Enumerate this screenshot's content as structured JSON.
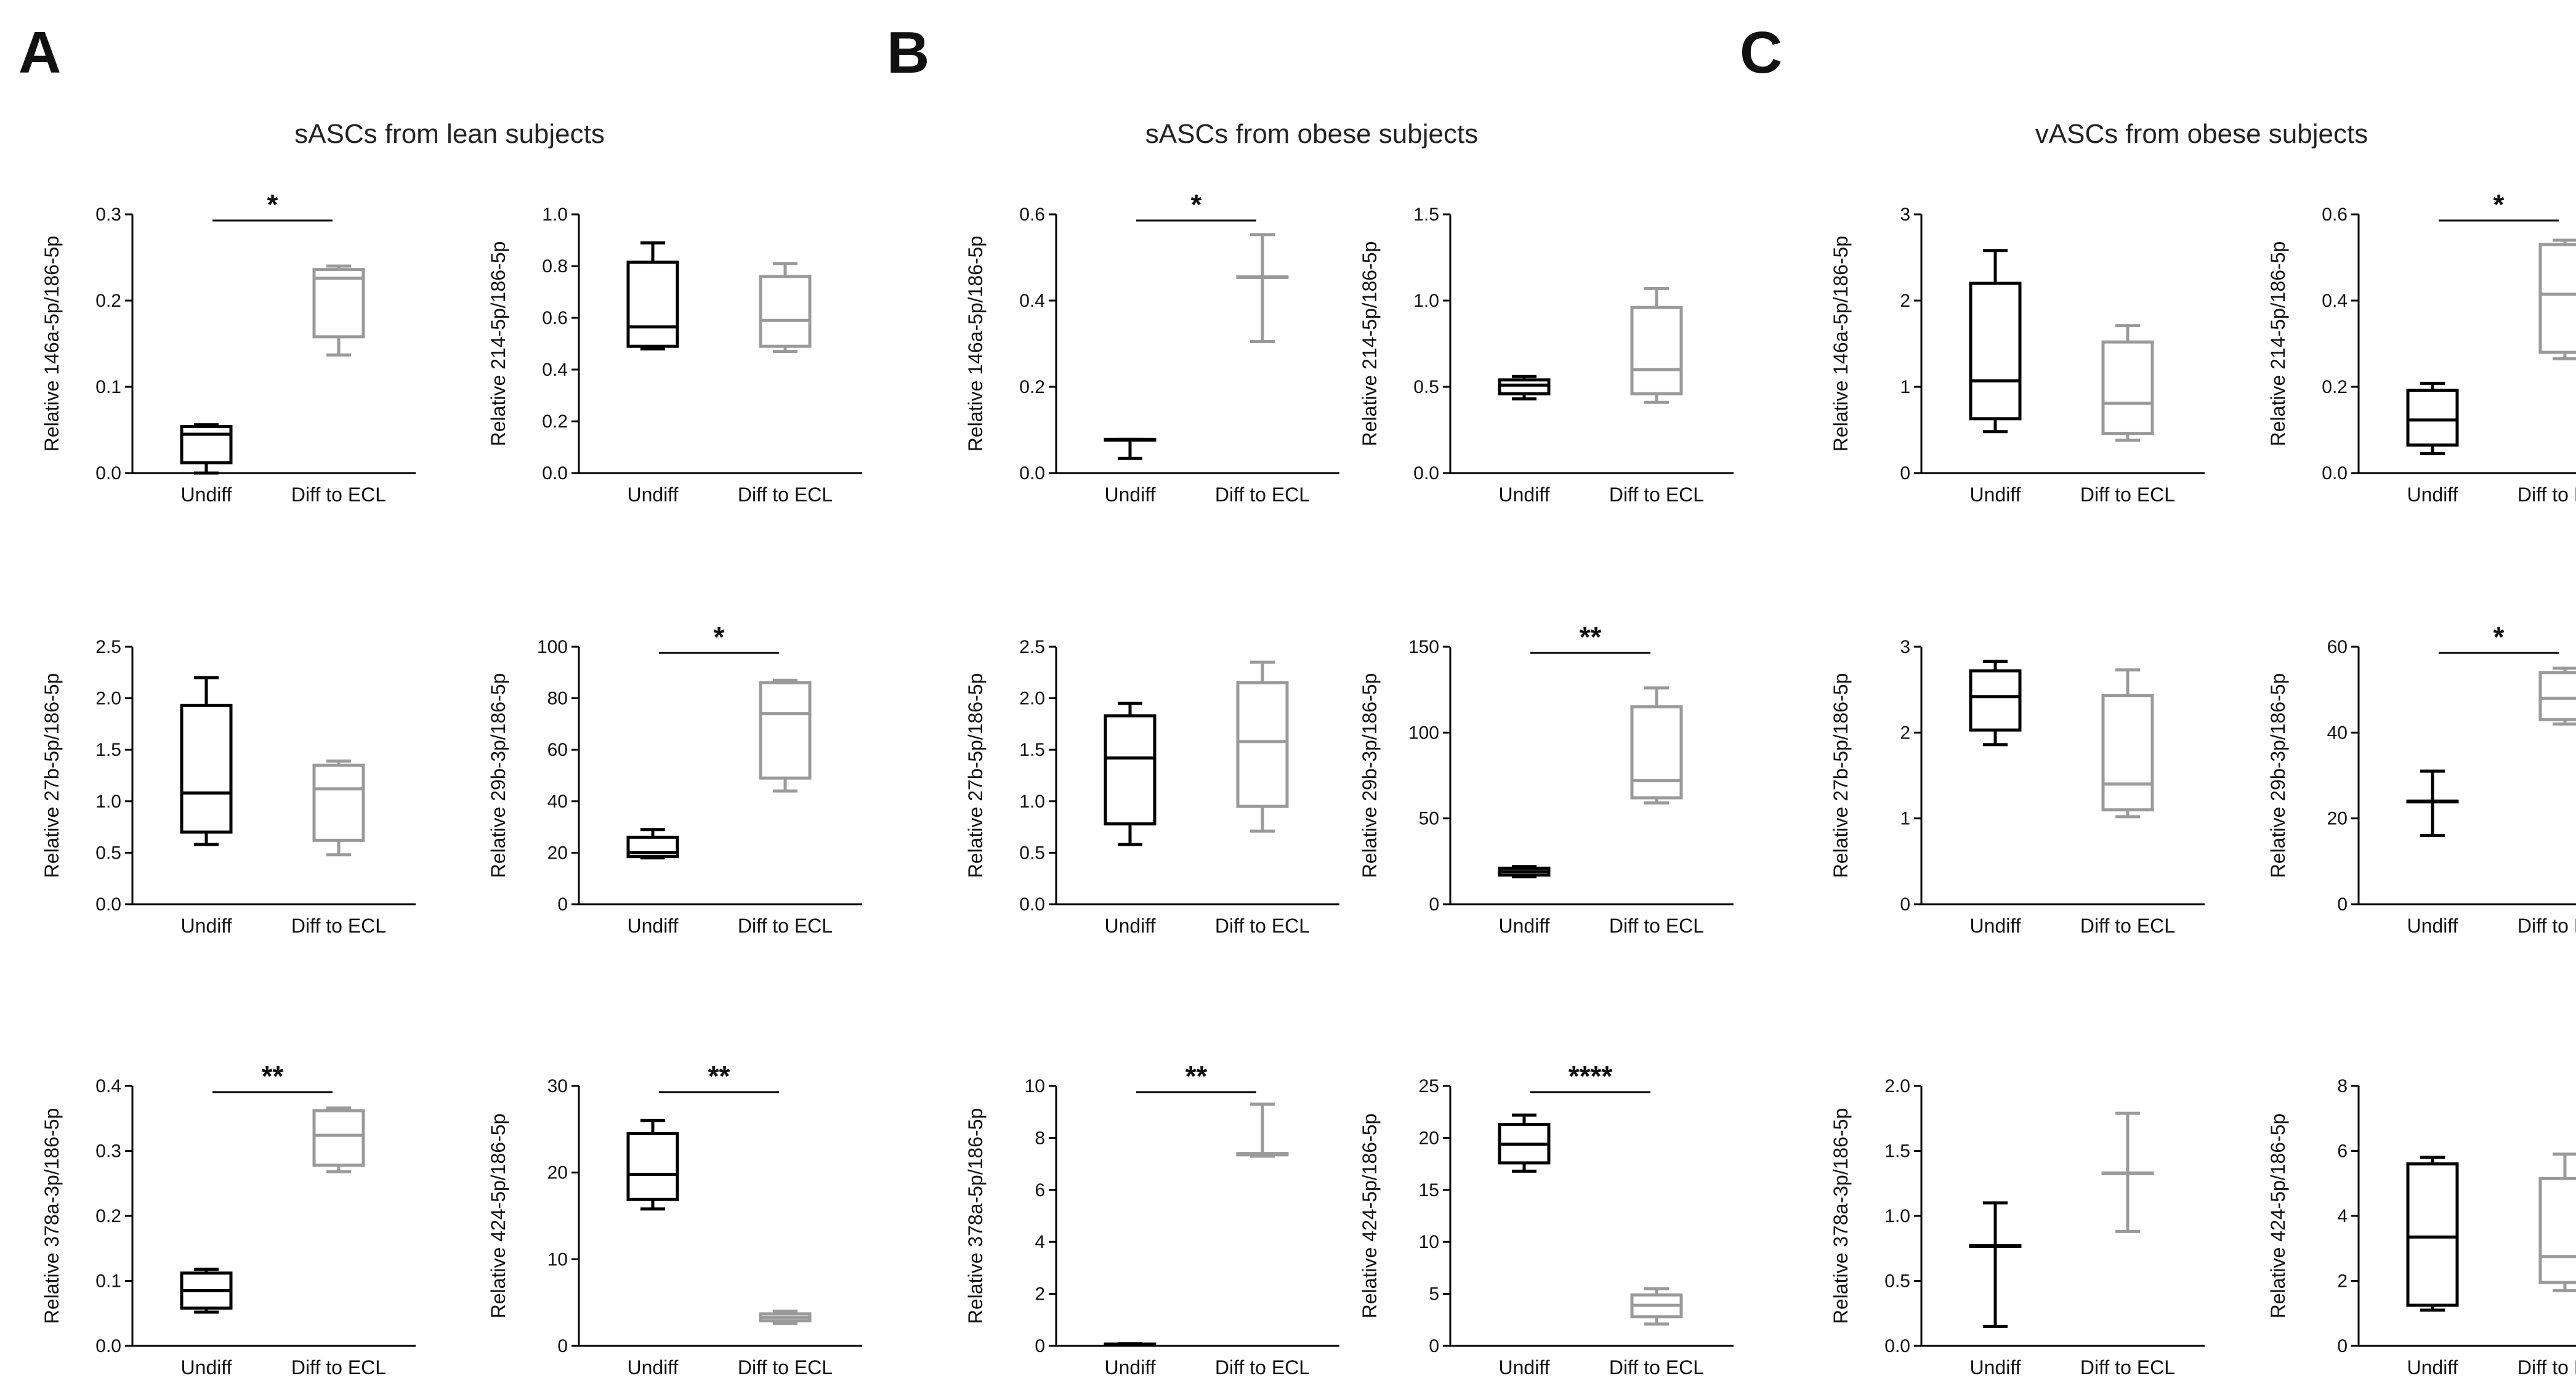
{
  "panels": [
    {
      "letter": "A",
      "title": "sASCs from lean subjects"
    },
    {
      "letter": "B",
      "title": "sASCs from obese subjects"
    },
    {
      "letter": "C",
      "title": "vASCs from obese subjects"
    }
  ],
  "colors": {
    "undiff": "#000000",
    "diff": "#9a9a9a"
  },
  "chart_data": [
    {
      "panel": "A",
      "type": "box",
      "ylabel": "Relative 146a-5p/186-5p",
      "ylim": [
        0,
        0.3
      ],
      "yticks": [
        "0.0",
        "0.1",
        "0.2",
        "0.3"
      ],
      "categories": [
        "Undiff",
        "Diff to ECL"
      ],
      "significance": "*",
      "boxes": [
        {
          "min": 0.0,
          "q1": 0.012,
          "median": 0.045,
          "q3": 0.054,
          "max": 0.056
        },
        {
          "min": 0.137,
          "q1": 0.158,
          "median": 0.226,
          "q3": 0.236,
          "max": 0.24
        }
      ]
    },
    {
      "panel": "A",
      "type": "box",
      "ylabel": "Relative 214-5p/186-5p",
      "ylim": [
        0,
        1.0
      ],
      "yticks": [
        "0.0",
        "0.2",
        "0.4",
        "0.6",
        "0.8",
        "1.0"
      ],
      "categories": [
        "Undiff",
        "Diff to ECL"
      ],
      "significance": "",
      "boxes": [
        {
          "min": 0.48,
          "q1": 0.49,
          "median": 0.565,
          "q3": 0.815,
          "max": 0.89
        },
        {
          "min": 0.47,
          "q1": 0.49,
          "median": 0.59,
          "q3": 0.76,
          "max": 0.81
        }
      ]
    },
    {
      "panel": "A",
      "type": "box",
      "ylabel": "Relative 27b-5p/186-5p",
      "ylim": [
        0,
        2.5
      ],
      "yticks": [
        "0.0",
        "0.5",
        "1.0",
        "1.5",
        "2.0",
        "2.5"
      ],
      "categories": [
        "Undiff",
        "Diff to ECL"
      ],
      "significance": "",
      "boxes": [
        {
          "min": 0.58,
          "q1": 0.7,
          "median": 1.08,
          "q3": 1.93,
          "max": 2.2
        },
        {
          "min": 0.48,
          "q1": 0.62,
          "median": 1.12,
          "q3": 1.35,
          "max": 1.39
        }
      ]
    },
    {
      "panel": "A",
      "type": "box",
      "ylabel": "Relative 29b-3p/186-5p",
      "ylim": [
        0,
        100
      ],
      "yticks": [
        "0",
        "20",
        "40",
        "60",
        "80",
        "100"
      ],
      "categories": [
        "Undiff",
        "Diff to ECL"
      ],
      "significance": "*",
      "boxes": [
        {
          "min": 18,
          "q1": 18.5,
          "median": 20,
          "q3": 26,
          "max": 29
        },
        {
          "min": 44,
          "q1": 49,
          "median": 74,
          "q3": 86,
          "max": 87
        }
      ]
    },
    {
      "panel": "A",
      "type": "box",
      "ylabel": "Relative 378a-3p/186-5p",
      "ylim": [
        0,
        0.4
      ],
      "yticks": [
        "0.0",
        "0.1",
        "0.2",
        "0.3",
        "0.4"
      ],
      "categories": [
        "Undiff",
        "Diff to ECL"
      ],
      "significance": "**",
      "boxes": [
        {
          "min": 0.052,
          "q1": 0.058,
          "median": 0.085,
          "q3": 0.112,
          "max": 0.118
        },
        {
          "min": 0.268,
          "q1": 0.278,
          "median": 0.324,
          "q3": 0.362,
          "max": 0.366
        }
      ]
    },
    {
      "panel": "A",
      "type": "box",
      "ylabel": "Relative 424-5p/186-5p",
      "ylim": [
        0,
        30
      ],
      "yticks": [
        "0",
        "10",
        "20",
        "30"
      ],
      "categories": [
        "Undiff",
        "Diff to ECL"
      ],
      "significance": "**",
      "boxes": [
        {
          "min": 15.8,
          "q1": 16.9,
          "median": 19.8,
          "q3": 24.5,
          "max": 26
        },
        {
          "min": 2.6,
          "q1": 2.9,
          "median": 3.3,
          "q3": 3.7,
          "max": 4.0
        }
      ]
    },
    {
      "panel": "B",
      "type": "box",
      "ylabel": "Relative 146a-5p/186-5p",
      "ylim": [
        0,
        0.6
      ],
      "yticks": [
        "0.0",
        "0.2",
        "0.4",
        "0.6"
      ],
      "categories": [
        "Undiff",
        "Diff to ECL"
      ],
      "significance": "*",
      "boxes": [
        {
          "min": 0.034,
          "q1": 0.078,
          "median": 0.078,
          "q3": 0.078,
          "max": 0.078
        },
        {
          "min": 0.305,
          "q1": 0.455,
          "median": 0.455,
          "q3": 0.455,
          "max": 0.553
        }
      ]
    },
    {
      "panel": "B",
      "type": "box",
      "ylabel": "Relative 214-5p/186-5p",
      "ylim": [
        0,
        1.5
      ],
      "yticks": [
        "0.0",
        "0.5",
        "1.0",
        "1.5"
      ],
      "categories": [
        "Undiff",
        "Diff to ECL"
      ],
      "significance": "",
      "boxes": [
        {
          "min": 0.43,
          "q1": 0.46,
          "median": 0.51,
          "q3": 0.54,
          "max": 0.56
        },
        {
          "min": 0.41,
          "q1": 0.46,
          "median": 0.6,
          "q3": 0.96,
          "max": 1.07
        }
      ]
    },
    {
      "panel": "B",
      "type": "box",
      "ylabel": "Relative 27b-5p/186-5p",
      "ylim": [
        0,
        2.5
      ],
      "yticks": [
        "0.0",
        "0.5",
        "1.0",
        "1.5",
        "2.0",
        "2.5"
      ],
      "categories": [
        "Undiff",
        "Diff to ECL"
      ],
      "significance": "",
      "boxes": [
        {
          "min": 0.58,
          "q1": 0.78,
          "median": 1.42,
          "q3": 1.83,
          "max": 1.95
        },
        {
          "min": 0.71,
          "q1": 0.95,
          "median": 1.58,
          "q3": 2.15,
          "max": 2.35
        }
      ]
    },
    {
      "panel": "B",
      "type": "box",
      "ylabel": "Relative 29b-3p/186-5p",
      "ylim": [
        0,
        150
      ],
      "yticks": [
        "0",
        "50",
        "100",
        "150"
      ],
      "categories": [
        "Undiff",
        "Diff to ECL"
      ],
      "significance": "**",
      "boxes": [
        {
          "min": 16,
          "q1": 17,
          "median": 19,
          "q3": 21,
          "max": 22
        },
        {
          "min": 59,
          "q1": 62,
          "median": 72,
          "q3": 115,
          "max": 126
        }
      ]
    },
    {
      "panel": "B",
      "type": "box",
      "ylabel": "Relative 378a-5p/186-5p",
      "ylim": [
        0,
        10
      ],
      "yticks": [
        "0",
        "2",
        "4",
        "6",
        "8",
        "10"
      ],
      "categories": [
        "Undiff",
        "Diff to ECL"
      ],
      "significance": "**",
      "boxes": [
        {
          "min": 0.03,
          "q1": 0.05,
          "median": 0.06,
          "q3": 0.07,
          "max": 0.08
        },
        {
          "min": 7.3,
          "q1": 7.35,
          "median": 7.4,
          "q3": 7.4,
          "max": 9.3
        }
      ]
    },
    {
      "panel": "B",
      "type": "box",
      "ylabel": "Relative 424-5p/186-5p",
      "ylim": [
        0,
        25
      ],
      "yticks": [
        "0",
        "5",
        "10",
        "15",
        "20",
        "25"
      ],
      "categories": [
        "Undiff",
        "Diff to ECL"
      ],
      "significance": "****",
      "boxes": [
        {
          "min": 16.8,
          "q1": 17.6,
          "median": 19.4,
          "q3": 21.3,
          "max": 22.2
        },
        {
          "min": 2.1,
          "q1": 2.8,
          "median": 3.9,
          "q3": 4.9,
          "max": 5.5
        }
      ]
    },
    {
      "panel": "C",
      "type": "box",
      "ylabel": "Relative 146a-5p/186-5p",
      "ylim": [
        0,
        3
      ],
      "yticks": [
        "0",
        "1",
        "2",
        "3"
      ],
      "categories": [
        "Undiff",
        "Diff to ECL"
      ],
      "significance": "",
      "boxes": [
        {
          "min": 0.48,
          "q1": 0.63,
          "median": 1.07,
          "q3": 2.2,
          "max": 2.58
        },
        {
          "min": 0.38,
          "q1": 0.46,
          "median": 0.81,
          "q3": 1.52,
          "max": 1.71
        }
      ]
    },
    {
      "panel": "C",
      "type": "box",
      "ylabel": "Relative 214-5p/186-5p",
      "ylim": [
        0,
        0.6
      ],
      "yticks": [
        "0.0",
        "0.2",
        "0.4",
        "0.6"
      ],
      "categories": [
        "Undiff",
        "Diff to ECL"
      ],
      "significance": "*",
      "boxes": [
        {
          "min": 0.045,
          "q1": 0.065,
          "median": 0.123,
          "q3": 0.192,
          "max": 0.208
        },
        {
          "min": 0.265,
          "q1": 0.28,
          "median": 0.415,
          "q3": 0.53,
          "max": 0.54
        }
      ]
    },
    {
      "panel": "C",
      "type": "box",
      "ylabel": "Relative 27b-5p/186-5p",
      "ylim": [
        0,
        3
      ],
      "yticks": [
        "0",
        "1",
        "2",
        "3"
      ],
      "categories": [
        "Undiff",
        "Diff to ECL"
      ],
      "significance": "",
      "boxes": [
        {
          "min": 1.86,
          "q1": 2.03,
          "median": 2.42,
          "q3": 2.72,
          "max": 2.83
        },
        {
          "min": 1.02,
          "q1": 1.1,
          "median": 1.4,
          "q3": 2.43,
          "max": 2.73
        }
      ]
    },
    {
      "panel": "C",
      "type": "box",
      "ylabel": "Relative 29b-3p/186-5p",
      "ylim": [
        0,
        60
      ],
      "yticks": [
        "0",
        "20",
        "40",
        "60"
      ],
      "categories": [
        "Undiff",
        "Diff to ECL"
      ],
      "significance": "*",
      "boxes": [
        {
          "min": 16,
          "q1": 24,
          "median": 24,
          "q3": 24,
          "max": 31
        },
        {
          "min": 42,
          "q1": 43,
          "median": 48,
          "q3": 54,
          "max": 55
        }
      ]
    },
    {
      "panel": "C",
      "type": "box",
      "ylabel": "Relative 378a-3p/186-5p",
      "ylim": [
        0,
        2.0
      ],
      "yticks": [
        "0.0",
        "0.5",
        "1.0",
        "1.5",
        "2.0"
      ],
      "categories": [
        "Undiff",
        "Diff to ECL"
      ],
      "significance": "",
      "boxes": [
        {
          "min": 0.15,
          "q1": 0.77,
          "median": 0.77,
          "q3": 0.77,
          "max": 1.1
        },
        {
          "min": 0.88,
          "q1": 1.33,
          "median": 1.33,
          "q3": 1.33,
          "max": 1.79
        }
      ]
    },
    {
      "panel": "C",
      "type": "box",
      "ylabel": "Relative 424-5p/186-5p",
      "ylim": [
        0,
        8
      ],
      "yticks": [
        "0",
        "2",
        "4",
        "6",
        "8"
      ],
      "categories": [
        "Undiff",
        "Diff to ECL"
      ],
      "significance": "",
      "boxes": [
        {
          "min": 1.1,
          "q1": 1.25,
          "median": 3.35,
          "q3": 5.6,
          "max": 5.8
        },
        {
          "min": 1.7,
          "q1": 1.95,
          "median": 2.75,
          "q3": 5.15,
          "max": 5.9
        }
      ]
    }
  ]
}
